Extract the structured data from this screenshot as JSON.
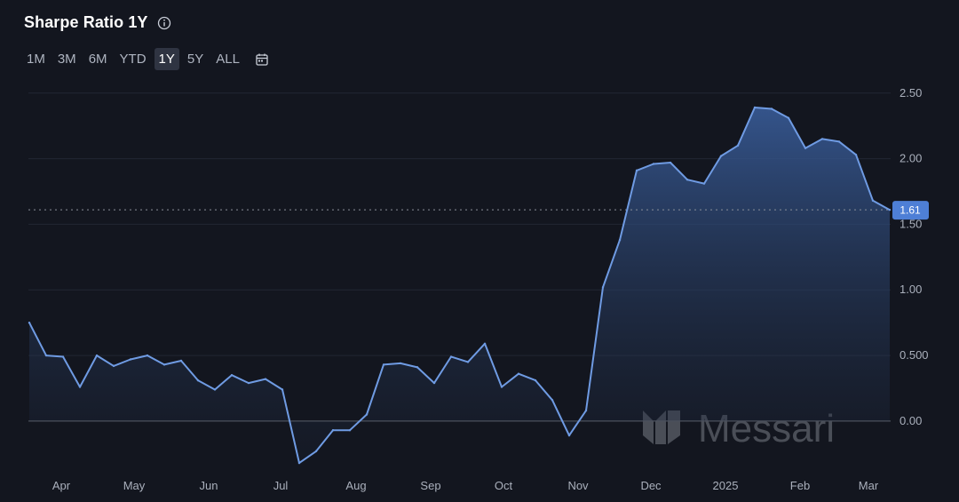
{
  "header": {
    "title": "Sharpe Ratio 1Y",
    "info_icon": "info-icon"
  },
  "ranges": [
    {
      "label": "1M",
      "active": false
    },
    {
      "label": "3M",
      "active": false
    },
    {
      "label": "6M",
      "active": false
    },
    {
      "label": "YTD",
      "active": false
    },
    {
      "label": "1Y",
      "active": true
    },
    {
      "label": "5Y",
      "active": false
    },
    {
      "label": "ALL",
      "active": false
    }
  ],
  "calendar_icon": "calendar-icon",
  "watermark": {
    "text": "Messari",
    "logo": "messari-logo"
  },
  "colors": {
    "background": "#13161f",
    "line": "#6f9be3",
    "area_top": "#3a5f9e",
    "label_bg": "#4e7fd6"
  },
  "chart_data": {
    "type": "area",
    "title": "Sharpe Ratio 1Y",
    "xlabel": "",
    "ylabel": "",
    "x_tick_labels": [
      "Apr",
      "May",
      "Jun",
      "Jul",
      "Aug",
      "Sep",
      "Oct",
      "Nov",
      "Dec",
      "2025",
      "Feb",
      "Mar"
    ],
    "y_tick_labels": [
      "0.00",
      "0.500",
      "1.00",
      "1.50",
      "2.00",
      "2.50"
    ],
    "y_ticks": [
      0,
      0.5,
      1,
      1.5,
      2,
      2.5
    ],
    "ylim": [
      -0.38,
      2.6
    ],
    "grid": true,
    "last_value_label": "1.61",
    "series": [
      {
        "values": [
          0.75,
          0.5,
          0.49,
          0.26,
          0.5,
          0.42,
          0.47,
          0.5,
          0.43,
          0.46,
          0.31,
          0.24,
          0.35,
          0.29,
          0.32,
          0.24,
          -0.32,
          -0.23,
          -0.07,
          -0.07,
          0.05,
          0.43,
          0.44,
          0.41,
          0.29,
          0.49,
          0.45,
          0.59,
          0.26,
          0.36,
          0.31,
          0.16,
          -0.11,
          0.08,
          1.02,
          1.38,
          1.91,
          1.96,
          1.97,
          1.84,
          1.81,
          2.02,
          2.1,
          2.39,
          2.38,
          2.31,
          2.08,
          2.15,
          2.13,
          2.03,
          1.68,
          1.61
        ]
      }
    ]
  }
}
